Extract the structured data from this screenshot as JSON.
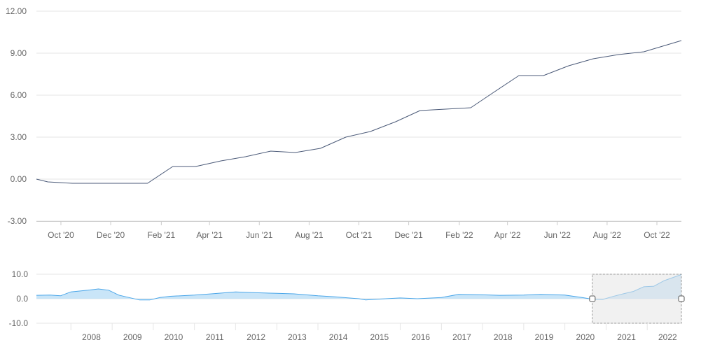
{
  "colors": {
    "main_line": "#4b5a78",
    "grid": "#e6e6e6",
    "axis": "#cccccc",
    "nav_line": "#4aa6e9",
    "nav_fill": "#bfe0f7",
    "selection_fill": "#e6e6e6",
    "selection_border": "#9a9a9a"
  },
  "chart_data": [
    {
      "type": "line",
      "title": "",
      "xlabel": "",
      "ylabel": "",
      "ylim": [
        -3,
        12
      ],
      "yticks": [
        "-3.00",
        "0.00",
        "3.00",
        "6.00",
        "9.00",
        "12.00"
      ],
      "xticks": [
        "Oct '20",
        "Dec '20",
        "Feb '21",
        "Apr '21",
        "Jun '21",
        "Aug '21",
        "Oct '21",
        "Dec '21",
        "Feb '22",
        "Apr '22",
        "Jun '22",
        "Aug '22",
        "Oct '22"
      ],
      "grid": true,
      "legend": "none",
      "x": [
        "2020-09-01",
        "2020-09-15",
        "2020-10-15",
        "2020-11-15",
        "2020-12-15",
        "2021-01-15",
        "2021-02-15",
        "2021-03-15",
        "2021-04-15",
        "2021-05-15",
        "2021-06-15",
        "2021-07-15",
        "2021-08-15",
        "2021-09-15",
        "2021-10-15",
        "2021-11-15",
        "2021-12-15",
        "2022-01-15",
        "2022-02-15",
        "2022-03-15",
        "2022-04-15",
        "2022-05-15",
        "2022-06-15",
        "2022-07-15",
        "2022-08-15",
        "2022-09-15",
        "2022-10-31"
      ],
      "y": [
        0.0,
        -0.2,
        -0.3,
        -0.3,
        -0.3,
        -0.3,
        0.9,
        0.9,
        1.3,
        1.6,
        2.0,
        1.9,
        2.2,
        3.0,
        3.4,
        4.1,
        4.9,
        5.0,
        5.1,
        6.2,
        7.4,
        7.4,
        8.1,
        8.6,
        8.9,
        9.1,
        9.9
      ]
    },
    {
      "type": "area",
      "title": "",
      "xlabel": "",
      "ylabel": "",
      "ylim": [
        -10,
        10
      ],
      "yticks": [
        "-10.0",
        "0.0",
        "10.0"
      ],
      "xticks": [
        "2008",
        "2009",
        "2010",
        "2011",
        "2012",
        "2013",
        "2014",
        "2015",
        "2016",
        "2017",
        "2018",
        "2019",
        "2020",
        "2021",
        "2022"
      ],
      "grid": true,
      "legend": "none",
      "selected_range": [
        "2020-09-01",
        "2022-10-31"
      ],
      "x": [
        "2007-03-01",
        "2007-07-01",
        "2007-10-01",
        "2008-01-01",
        "2008-06-01",
        "2008-09-01",
        "2008-12-01",
        "2009-03-01",
        "2009-06-01",
        "2009-09-01",
        "2009-12-01",
        "2010-03-01",
        "2010-06-01",
        "2011-01-01",
        "2011-06-01",
        "2012-01-01",
        "2012-06-01",
        "2013-01-01",
        "2013-06-01",
        "2014-01-01",
        "2014-06-01",
        "2015-01-01",
        "2015-03-01",
        "2015-06-01",
        "2016-01-01",
        "2016-06-01",
        "2017-01-01",
        "2017-06-01",
        "2018-01-01",
        "2018-06-01",
        "2019-01-01",
        "2019-06-01",
        "2020-01-01",
        "2020-06-01",
        "2020-09-01",
        "2020-12-01",
        "2021-03-01",
        "2021-06-01",
        "2021-09-01",
        "2021-12-01",
        "2022-03-01",
        "2022-06-01",
        "2022-10-31"
      ],
      "y": [
        1.4,
        1.5,
        1.2,
        2.8,
        3.5,
        4.0,
        3.5,
        1.5,
        0.5,
        -0.5,
        -0.5,
        0.5,
        1.0,
        1.5,
        2.0,
        2.8,
        2.5,
        2.2,
        2.0,
        1.2,
        0.8,
        0.0,
        -0.5,
        -0.2,
        0.3,
        0.0,
        0.5,
        1.8,
        1.6,
        1.4,
        1.5,
        1.8,
        1.5,
        0.5,
        -0.2,
        -0.3,
        0.9,
        2.0,
        3.0,
        4.9,
        5.1,
        7.4,
        9.9
      ]
    }
  ]
}
